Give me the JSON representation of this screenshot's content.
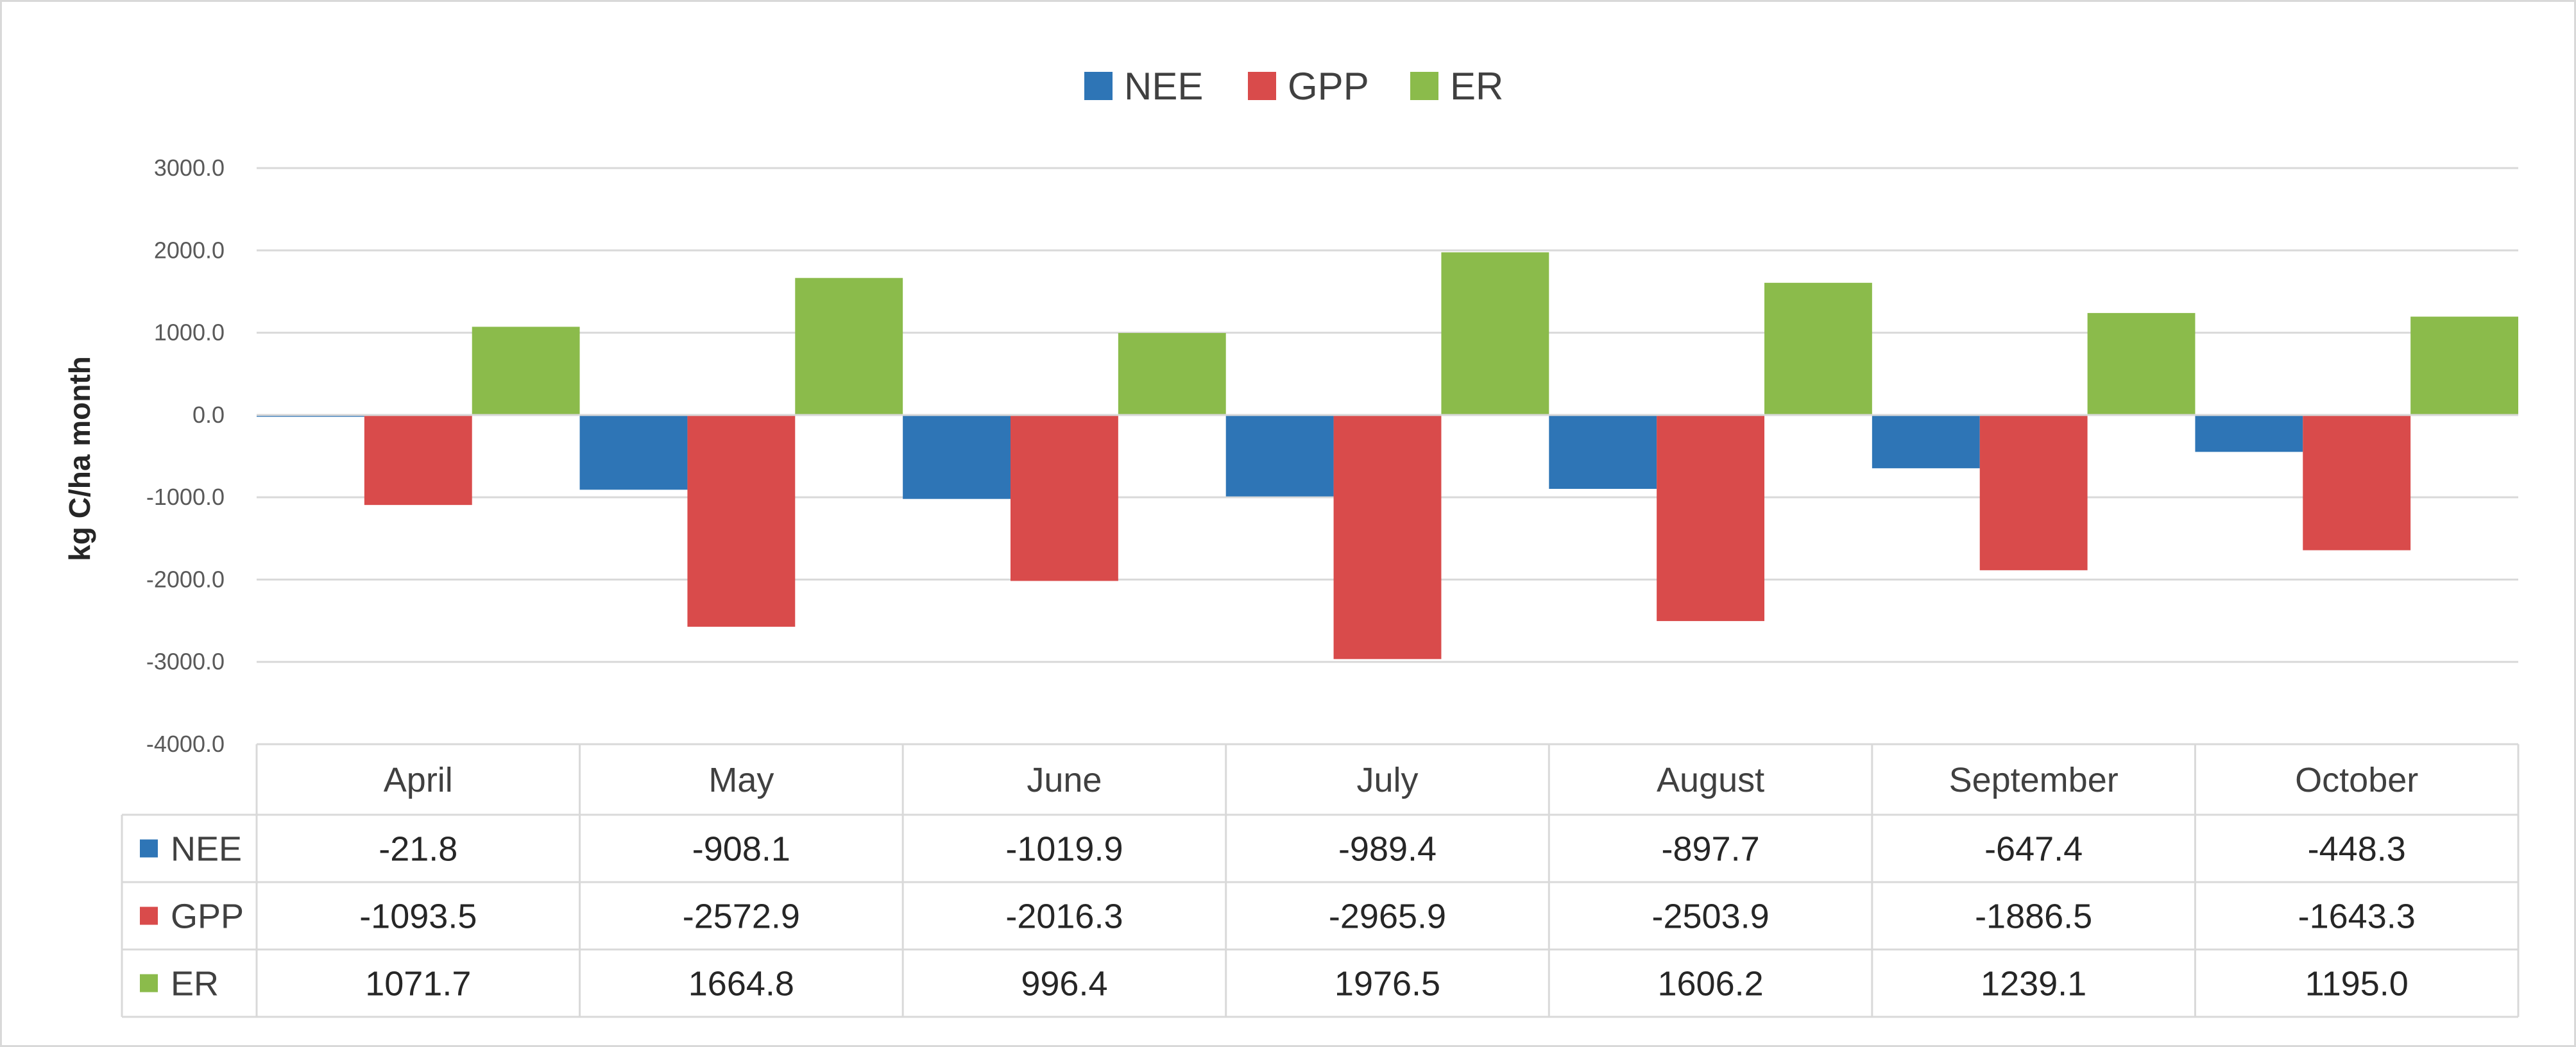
{
  "chart_data": {
    "type": "bar",
    "title": "",
    "xlabel": "",
    "ylabel": "kg C/ha month",
    "ylim": [
      -4000,
      3000
    ],
    "y_ticks": [
      "3000.0",
      "2000.0",
      "1000.0",
      "0.0",
      "-1000.0",
      "-2000.0",
      "-3000.0",
      "-4000.0"
    ],
    "y_tick_values": [
      3000,
      2000,
      1000,
      0,
      -1000,
      -2000,
      -3000,
      -4000
    ],
    "grid": true,
    "legend_position": "top-center",
    "categories": [
      "April",
      "May",
      "June",
      "July",
      "August",
      "September",
      "October"
    ],
    "series": [
      {
        "name": "NEE",
        "color": "#2e75b6",
        "values": [
          -21.8,
          -908.1,
          -1019.9,
          -989.4,
          -897.7,
          -647.4,
          -448.3
        ],
        "labels": [
          "-21.8",
          "-908.1",
          "-1019.9",
          "-989.4",
          "-897.7",
          "-647.4",
          "-448.3"
        ]
      },
      {
        "name": "GPP",
        "color": "#d94b4b",
        "values": [
          -1093.5,
          -2572.9,
          -2016.3,
          -2965.9,
          -2503.9,
          -1886.5,
          -1643.3
        ],
        "labels": [
          "-1093.5",
          "-2572.9",
          "-2016.3",
          "-2965.9",
          "-2503.9",
          "-1886.5",
          "-1643.3"
        ]
      },
      {
        "name": "ER",
        "color": "#8bbb4b",
        "values": [
          1071.7,
          1664.8,
          996.4,
          1976.5,
          1606.2,
          1239.1,
          1195.0
        ],
        "labels": [
          "1071.7",
          "1664.8",
          "996.4",
          "1976.5",
          "1606.2",
          "1239.1",
          "1195.0"
        ]
      }
    ]
  }
}
